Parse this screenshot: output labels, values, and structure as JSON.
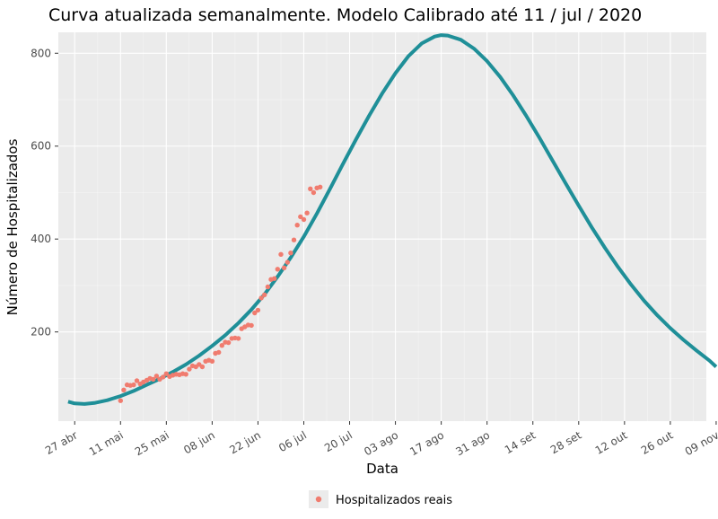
{
  "chart_data": {
    "type": "line",
    "title": "Curva atualizada semanalmente. Modelo Calibrado até 11 / jul / 2020",
    "xlabel": "Data",
    "ylabel": "Número de Hospitalizados",
    "x_unit": "days since 2020-04-27",
    "xlim": [
      -5,
      193
    ],
    "ylim": [
      8,
      845
    ],
    "grid": true,
    "x_ticks": [
      {
        "label": "27 abr",
        "day": 0
      },
      {
        "label": "11 mai",
        "day": 14
      },
      {
        "label": "25 mai",
        "day": 28
      },
      {
        "label": "08 jun",
        "day": 42
      },
      {
        "label": "22 jun",
        "day": 56
      },
      {
        "label": "06 jul",
        "day": 70
      },
      {
        "label": "20 jul",
        "day": 84
      },
      {
        "label": "03 ago",
        "day": 98
      },
      {
        "label": "17 ago",
        "day": 112
      },
      {
        "label": "31 ago",
        "day": 126
      },
      {
        "label": "14 set",
        "day": 140
      },
      {
        "label": "28 set",
        "day": 154
      },
      {
        "label": "12 out",
        "day": 168
      },
      {
        "label": "26 out",
        "day": 182
      },
      {
        "label": "09 nov",
        "day": 196
      }
    ],
    "y_ticks": [
      {
        "label": "200",
        "value": 200
      },
      {
        "label": "400",
        "value": 400
      },
      {
        "label": "600",
        "value": 600
      },
      {
        "label": "800",
        "value": 800
      }
    ],
    "series": [
      {
        "name": "Modelo Calibrado",
        "kind": "line",
        "color": "#1f8f98",
        "points": [
          [
            -2,
            50
          ],
          [
            0,
            46
          ],
          [
            3,
            45
          ],
          [
            6,
            47
          ],
          [
            10,
            53
          ],
          [
            14,
            62
          ],
          [
            18,
            73
          ],
          [
            22,
            86
          ],
          [
            26,
            99
          ],
          [
            30,
            114
          ],
          [
            34,
            130
          ],
          [
            38,
            149
          ],
          [
            42,
            170
          ],
          [
            46,
            193
          ],
          [
            50,
            219
          ],
          [
            54,
            248
          ],
          [
            58,
            281
          ],
          [
            62,
            319
          ],
          [
            66,
            360
          ],
          [
            70,
            405
          ],
          [
            74,
            455
          ],
          [
            78,
            508
          ],
          [
            82,
            562
          ],
          [
            86,
            615
          ],
          [
            90,
            666
          ],
          [
            94,
            714
          ],
          [
            98,
            757
          ],
          [
            102,
            794
          ],
          [
            106,
            821
          ],
          [
            110,
            836
          ],
          [
            112,
            839
          ],
          [
            114,
            838
          ],
          [
            118,
            829
          ],
          [
            122,
            810
          ],
          [
            126,
            783
          ],
          [
            130,
            749
          ],
          [
            134,
            709
          ],
          [
            138,
            665
          ],
          [
            142,
            618
          ],
          [
            146,
            569
          ],
          [
            150,
            520
          ],
          [
            154,
            472
          ],
          [
            158,
            425
          ],
          [
            162,
            381
          ],
          [
            166,
            340
          ],
          [
            170,
            302
          ],
          [
            174,
            267
          ],
          [
            178,
            236
          ],
          [
            182,
            208
          ],
          [
            186,
            183
          ],
          [
            190,
            160
          ],
          [
            194,
            138
          ],
          [
            196,
            125
          ]
        ]
      },
      {
        "name": "Hospitalizados reais",
        "kind": "scatter",
        "color": "#f07c6f",
        "points": [
          [
            14,
            52
          ],
          [
            15,
            75
          ],
          [
            16,
            86
          ],
          [
            17,
            85
          ],
          [
            18,
            86
          ],
          [
            19,
            95
          ],
          [
            20,
            88
          ],
          [
            21,
            92
          ],
          [
            22,
            96
          ],
          [
            23,
            100
          ],
          [
            24,
            98
          ],
          [
            25,
            105
          ],
          [
            26,
            98
          ],
          [
            27,
            103
          ],
          [
            28,
            110
          ],
          [
            29,
            104
          ],
          [
            30,
            107
          ],
          [
            31,
            109
          ],
          [
            32,
            108
          ],
          [
            33,
            110
          ],
          [
            34,
            109
          ],
          [
            35,
            120
          ],
          [
            36,
            127
          ],
          [
            37,
            125
          ],
          [
            38,
            130
          ],
          [
            39,
            125
          ],
          [
            40,
            137
          ],
          [
            41,
            139
          ],
          [
            42,
            137
          ],
          [
            43,
            154
          ],
          [
            44,
            156
          ],
          [
            45,
            171
          ],
          [
            46,
            178
          ],
          [
            47,
            177
          ],
          [
            48,
            186
          ],
          [
            49,
            187
          ],
          [
            50,
            186
          ],
          [
            51,
            207
          ],
          [
            52,
            211
          ],
          [
            53,
            215
          ],
          [
            54,
            214
          ],
          [
            55,
            241
          ],
          [
            56,
            247
          ],
          [
            57,
            273
          ],
          [
            58,
            280
          ],
          [
            59,
            297
          ],
          [
            60,
            313
          ],
          [
            61,
            315
          ],
          [
            62,
            335
          ],
          [
            63,
            367
          ],
          [
            64,
            338
          ],
          [
            65,
            350
          ],
          [
            66,
            370
          ],
          [
            67,
            398
          ],
          [
            68,
            430
          ],
          [
            69,
            448
          ],
          [
            70,
            442
          ],
          [
            71,
            456
          ],
          [
            72,
            508
          ],
          [
            73,
            500
          ],
          [
            74,
            510
          ],
          [
            75,
            512
          ]
        ]
      }
    ],
    "legend": {
      "position": "bottom",
      "entries": [
        "Hospitalizados reais"
      ]
    }
  }
}
